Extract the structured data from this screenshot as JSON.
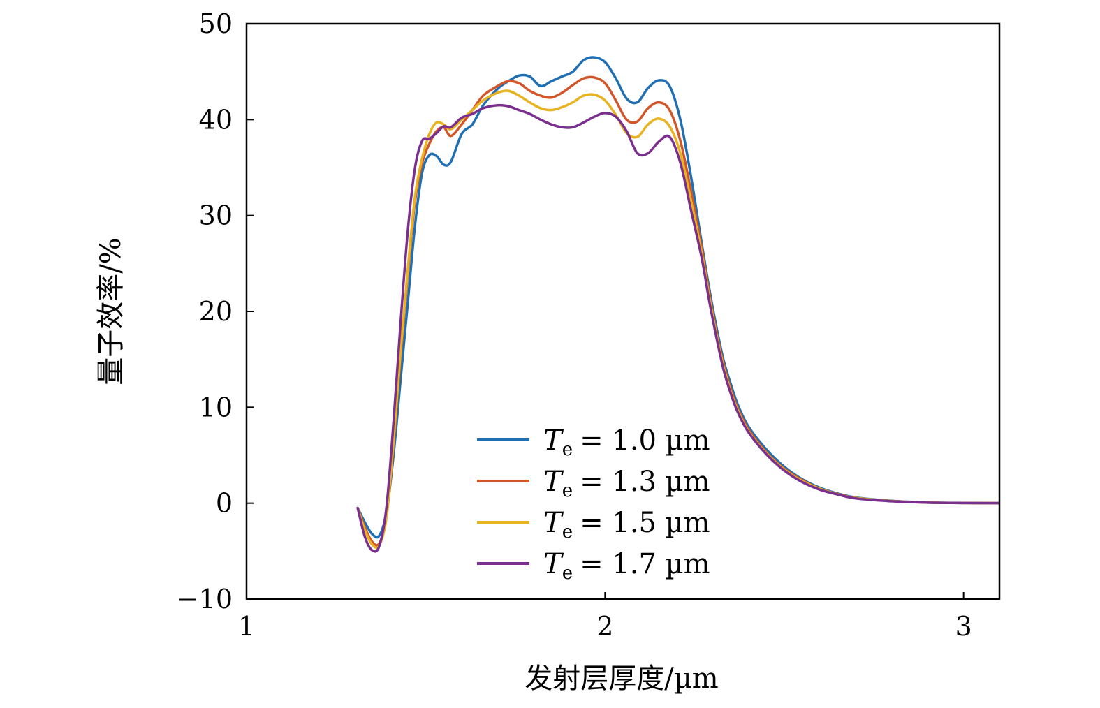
{
  "chart_data": {
    "type": "line",
    "title": "",
    "xlabel": "发射层厚度/µm",
    "ylabel": "量子效率/%",
    "xlim": [
      1,
      3.1
    ],
    "ylim": [
      -10,
      50
    ],
    "xticks": [
      1,
      2,
      3
    ],
    "xtick_labels": [
      "1",
      "2",
      "3"
    ],
    "yticks": [
      -10,
      0,
      10,
      20,
      30,
      40,
      50
    ],
    "ytick_labels": [
      "−10",
      "0",
      "10",
      "20",
      "30",
      "40",
      "50"
    ],
    "grid": false,
    "legend_position": "lower-center",
    "series": [
      {
        "name": "Te = 1.0 µm",
        "legend_symbol": "T",
        "legend_sub": "e",
        "legend_value": "= 1.0 µm",
        "color": "#1f6fb2",
        "x": [
          1.31,
          1.33,
          1.35,
          1.37,
          1.39,
          1.41,
          1.43,
          1.45,
          1.47,
          1.49,
          1.51,
          1.53,
          1.55,
          1.57,
          1.6,
          1.63,
          1.66,
          1.7,
          1.73,
          1.76,
          1.79,
          1.82,
          1.85,
          1.88,
          1.91,
          1.94,
          1.97,
          2.0,
          2.03,
          2.06,
          2.09,
          2.12,
          2.15,
          2.18,
          2.21,
          2.24,
          2.27,
          2.29,
          2.31,
          2.33,
          2.35,
          2.37,
          2.4,
          2.45,
          2.5,
          2.55,
          2.6,
          2.65,
          2.7,
          2.8,
          2.9,
          3.0,
          3.1
        ],
        "y": [
          -0.5,
          -2.0,
          -3.2,
          -3.4,
          -1.0,
          5.0,
          13.0,
          21.0,
          29.0,
          34.5,
          36.3,
          36.2,
          35.3,
          35.6,
          38.5,
          39.5,
          41.5,
          43.2,
          44.0,
          44.6,
          44.5,
          43.5,
          44.0,
          44.5,
          45.0,
          46.2,
          46.5,
          46.0,
          44.3,
          42.2,
          41.8,
          43.3,
          44.1,
          43.5,
          40.0,
          34.0,
          27.0,
          22.5,
          18.5,
          15.0,
          12.5,
          10.3,
          8.0,
          5.6,
          3.8,
          2.5,
          1.6,
          1.0,
          0.6,
          0.25,
          0.08,
          0.02,
          0.0
        ]
      },
      {
        "name": "Te = 1.3 µm",
        "legend_symbol": "T",
        "legend_sub": "e",
        "legend_value": "= 1.3 µm",
        "color": "#d1562a",
        "x": [
          1.31,
          1.33,
          1.35,
          1.37,
          1.39,
          1.41,
          1.43,
          1.45,
          1.47,
          1.49,
          1.51,
          1.53,
          1.55,
          1.57,
          1.6,
          1.63,
          1.66,
          1.7,
          1.73,
          1.76,
          1.79,
          1.82,
          1.85,
          1.88,
          1.91,
          1.94,
          1.97,
          2.0,
          2.03,
          2.06,
          2.09,
          2.12,
          2.15,
          2.18,
          2.21,
          2.24,
          2.27,
          2.29,
          2.31,
          2.33,
          2.35,
          2.37,
          2.4,
          2.45,
          2.5,
          2.55,
          2.6,
          2.65,
          2.7,
          2.8,
          2.9,
          3.0,
          3.1
        ],
        "y": [
          -0.5,
          -2.5,
          -4.0,
          -4.2,
          -1.5,
          6.0,
          15.5,
          24.0,
          31.5,
          35.5,
          37.5,
          38.8,
          39.2,
          38.3,
          39.5,
          41.0,
          42.5,
          43.5,
          44.0,
          43.8,
          43.0,
          42.5,
          42.3,
          42.8,
          43.6,
          44.3,
          44.4,
          43.8,
          42.0,
          40.0,
          39.8,
          41.2,
          41.8,
          41.0,
          37.8,
          32.5,
          26.5,
          22.0,
          18.0,
          14.6,
          12.0,
          9.9,
          7.7,
          5.3,
          3.6,
          2.4,
          1.5,
          0.95,
          0.55,
          0.22,
          0.07,
          0.02,
          0.0
        ]
      },
      {
        "name": "Te = 1.5 µm",
        "legend_symbol": "T",
        "legend_sub": "e",
        "legend_value": "= 1.5 µm",
        "color": "#e8b320",
        "x": [
          1.31,
          1.33,
          1.35,
          1.37,
          1.39,
          1.41,
          1.43,
          1.45,
          1.47,
          1.49,
          1.51,
          1.53,
          1.55,
          1.57,
          1.6,
          1.63,
          1.66,
          1.7,
          1.73,
          1.76,
          1.79,
          1.82,
          1.85,
          1.88,
          1.91,
          1.94,
          1.97,
          2.0,
          2.03,
          2.06,
          2.09,
          2.12,
          2.15,
          2.18,
          2.21,
          2.24,
          2.27,
          2.29,
          2.31,
          2.33,
          2.35,
          2.37,
          2.4,
          2.45,
          2.5,
          2.55,
          2.6,
          2.65,
          2.7,
          2.8,
          2.9,
          3.0,
          3.1
        ],
        "y": [
          -0.5,
          -2.8,
          -4.3,
          -4.4,
          -1.5,
          6.5,
          16.0,
          24.5,
          32.0,
          36.0,
          38.5,
          39.7,
          39.5,
          39.0,
          40.0,
          41.0,
          42.0,
          42.8,
          43.0,
          42.5,
          41.8,
          41.2,
          41.0,
          41.3,
          41.8,
          42.5,
          42.6,
          42.0,
          40.5,
          38.6,
          38.2,
          39.5,
          40.1,
          39.3,
          36.5,
          31.5,
          26.0,
          21.6,
          17.7,
          14.3,
          11.7,
          9.7,
          7.5,
          5.2,
          3.5,
          2.3,
          1.5,
          0.9,
          0.55,
          0.22,
          0.07,
          0.02,
          0.0
        ]
      },
      {
        "name": "Te = 1.7 µm",
        "legend_symbol": "T",
        "legend_sub": "e",
        "legend_value": "= 1.7 µm",
        "color": "#7a2f8e",
        "x": [
          1.31,
          1.33,
          1.35,
          1.37,
          1.39,
          1.41,
          1.43,
          1.45,
          1.47,
          1.49,
          1.51,
          1.53,
          1.55,
          1.57,
          1.6,
          1.63,
          1.66,
          1.7,
          1.73,
          1.76,
          1.79,
          1.82,
          1.85,
          1.88,
          1.91,
          1.94,
          1.97,
          2.0,
          2.03,
          2.06,
          2.09,
          2.12,
          2.15,
          2.18,
          2.21,
          2.24,
          2.27,
          2.29,
          2.31,
          2.33,
          2.35,
          2.37,
          2.4,
          2.45,
          2.5,
          2.55,
          2.6,
          2.65,
          2.7,
          2.8,
          2.9,
          3.0,
          3.1
        ],
        "y": [
          -0.5,
          -3.5,
          -4.9,
          -4.5,
          -0.5,
          8.5,
          19.0,
          28.5,
          35.0,
          37.8,
          38.0,
          38.6,
          39.3,
          39.2,
          40.2,
          40.6,
          41.2,
          41.5,
          41.4,
          41.0,
          40.6,
          40.0,
          39.5,
          39.2,
          39.2,
          39.7,
          40.3,
          40.7,
          40.3,
          38.8,
          36.5,
          36.5,
          37.7,
          38.2,
          35.5,
          30.5,
          25.5,
          21.2,
          17.4,
          14.0,
          11.5,
          9.5,
          7.4,
          5.1,
          3.4,
          2.2,
          1.4,
          0.9,
          0.5,
          0.2,
          0.06,
          0.02,
          0.0
        ]
      }
    ]
  }
}
